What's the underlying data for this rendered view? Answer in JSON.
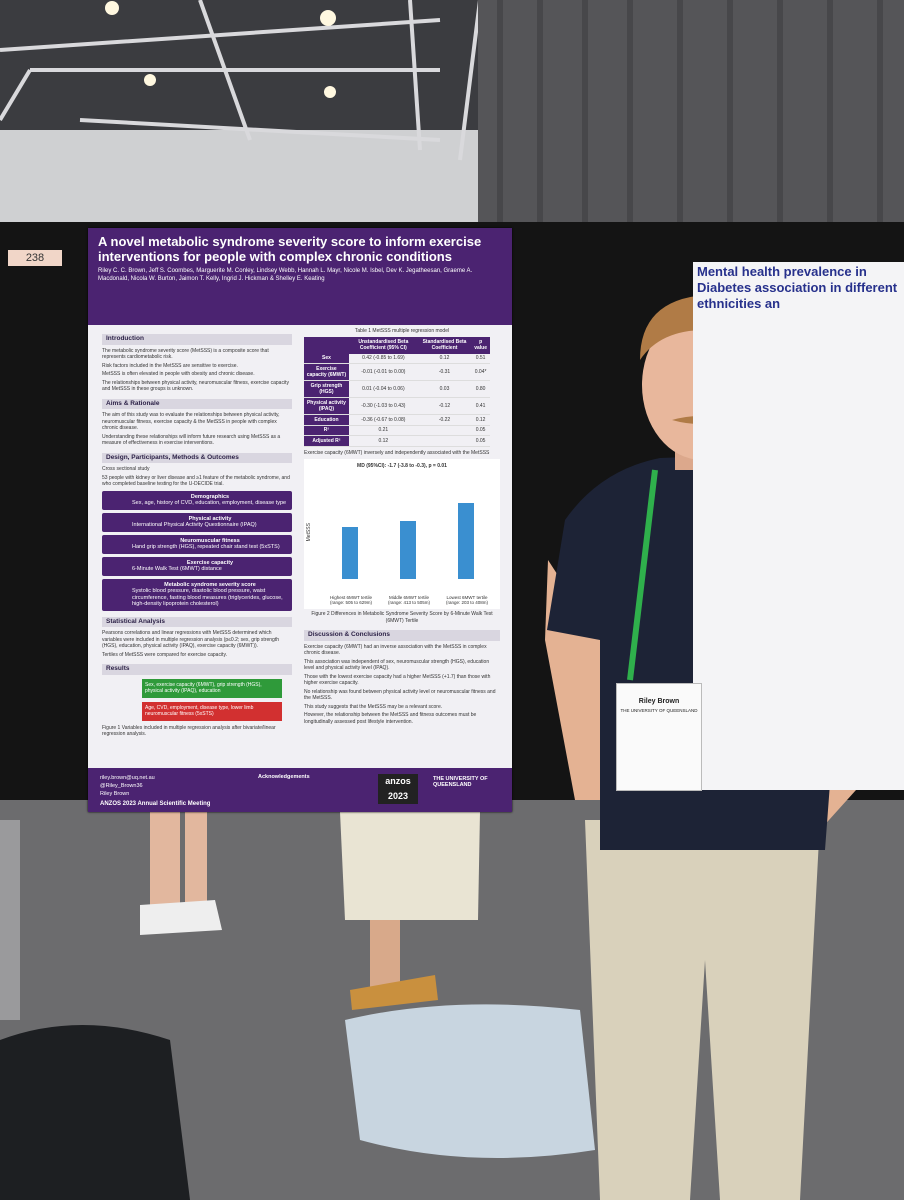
{
  "board_number": "238",
  "poster": {
    "title": "A novel metabolic syndrome severity score to inform exercise interventions for people with complex chronic conditions",
    "authors": "Riley C. C. Brown, Jeff S. Coombes, Marguerite M. Conley, Lindsey Webb, Hannah L. Mayr, Nicole M. Isbel, Dev K. Jegatheesan, Graeme A. Macdonald, Nicola W. Burton, Jaimon T. Kelly, Ingrid J. Hickman & Shelley E. Keating",
    "left_sections": [
      {
        "heading": "Introduction",
        "text": [
          "The metabolic syndrome severity score (MetSSS) is a composite score that represents cardiometabolic risk.",
          "Risk factors included in the MetSSS are sensitive to exercise.",
          "MetSSS is often elevated in people with obesity and chronic disease.",
          "The relationships between physical activity, neuromuscular fitness, exercise capacity and MetSSS in these groups is unknown."
        ]
      },
      {
        "heading": "Aims & Rationale",
        "text": [
          "The aim of this study was to evaluate the relationships between physical activity, neuromuscular fitness, exercise capacity & the MetSSS in people with complex chronic disease.",
          "Understanding these relationships will inform future research using MetSSS as a measure of effectiveness in exercise interventions."
        ]
      },
      {
        "heading": "Design, Participants, Methods & Outcomes",
        "text": [
          "Cross sectional study",
          "53 people with kidney or liver disease and ≥1 feature of the metabolic syndrome, and who completed baseline testing for the U-DECIDE trial."
        ]
      }
    ],
    "methods": [
      {
        "title": "Demographics",
        "text": "Sex, age, history of CVD, education, employment, disease type"
      },
      {
        "title": "Physical activity",
        "text": "International Physical Activity Questionnaire (IPAQ)"
      },
      {
        "title": "Neuromuscular fitness",
        "text": "Hand grip strength (HGS), repeated chair stand test (5xSTS)"
      },
      {
        "title": "Exercise capacity",
        "text": "6-Minute Walk Test (6MWT) distance"
      },
      {
        "title": "Metabolic syndrome severity score",
        "text": "Systolic blood pressure, diastolic blood pressure, waist circumference, fasting blood measures (triglycerides, glucose, high-density lipoprotein cholesterol)"
      }
    ],
    "stats": {
      "heading": "Statistical Analysis",
      "text": [
        "Pearsons correlations and linear regressions with MetSSS determined which variables were included in multiple regression analysis (p≤0.2; sex, grip strength (HGS), education, physical activity (IPAQ), exercise capacity (6MWT)).",
        "Tertiles of MetSSS were compared for exercise capacity."
      ]
    },
    "results": {
      "heading": "Results",
      "positive": "Sex, exercise capacity (6MWT), grip strength (HGS), physical activity (IPAQ), education",
      "negative": "Age, CVD, employment, disease type, lower limb neuromuscular fitness (5xSTS)",
      "caption": "Figure 1 Variables included in multiple regression analysis after bivariate/linear regression analysis."
    },
    "table": {
      "caption": "Table 1 MetSSS multiple regression model",
      "header": [
        "",
        "Unstandardised Beta Coefficient (95% CI)",
        "Standardised Beta Coefficient",
        "p value"
      ],
      "rows": [
        [
          "Sex",
          "0.42 (-0.85 to 1.69)",
          "0.12",
          "0.51"
        ],
        [
          "Exercise capacity (6MWT)",
          "-0.01 (-0.01 to 0.00)",
          "-0.31",
          "0.04*"
        ],
        [
          "Grip strength (HGS)",
          "0.01 (-0.04 to 0.06)",
          "0.03",
          "0.80"
        ],
        [
          "Physical activity (IPAQ)",
          "-0.30 (-1.03 to 0.43)",
          "-0.12",
          "0.41"
        ],
        [
          "Education",
          "-0.36 (-0.67 to 0.08)",
          "-0.22",
          "0.12"
        ],
        [
          "R²",
          "0.21",
          "",
          "0.05"
        ],
        [
          "Adjusted R²",
          "0.12",
          "",
          "0.05"
        ]
      ],
      "note": "Exercise capacity (6MWT) inversely and independently associated with the MetSSS"
    },
    "figure": {
      "note": "MD (95%CI): -1.7 (-3.8 to -0.3), p = 0.01",
      "axis": "MetSSS",
      "groups": [
        "Highest 6MWT tertile (range: 505 to 629m)",
        "Middle 6MWT tertile (range: 413 to 505m)",
        "Lowest 6MWT tertile (range: 203 to 408m)"
      ],
      "caption": "Figure 2 Differences in Metabolic Syndrome Severity Score by 6-Minute Walk Test (6MWT) Tertile"
    },
    "discussion": {
      "heading": "Discussion & Conclusions",
      "text": [
        "Exercise capacity (6MWT) had an inverse association with the MetSSS in complex chronic disease.",
        "This association was independent of sex, neuromuscular strength (HGS), education level and physical activity level (IPAQ).",
        "Those with the lowest exercise capacity had a higher MetSSS (+1.7) than those with higher exercise capacity.",
        "No relationship was found between physical activity level or neuromuscular fitness and the MetSSS.",
        "This study suggests that the MetSSS may be a relevant score.",
        "However, the relationship between the MetSSS and fitness outcomes must be longitudinally assessed post lifestyle intervention."
      ]
    },
    "contact": [
      "riley.brown@uq.net.au",
      "@Riley_Brown36",
      "Riley Brown"
    ],
    "acknowledgements": "Acknowledgements",
    "meeting": "ANZOS 2023 Annual Scientific Meeting",
    "logo": "anzos 2023",
    "university": "THE UNIVERSITY OF QUEENSLAND"
  },
  "neighbor_poster": {
    "title": "Mental health prevalence in Diabetes association in different ethnicities an"
  },
  "badge": {
    "name": "Riley Brown",
    "affiliation": "THE UNIVERSITY OF QUEENSLAND"
  }
}
